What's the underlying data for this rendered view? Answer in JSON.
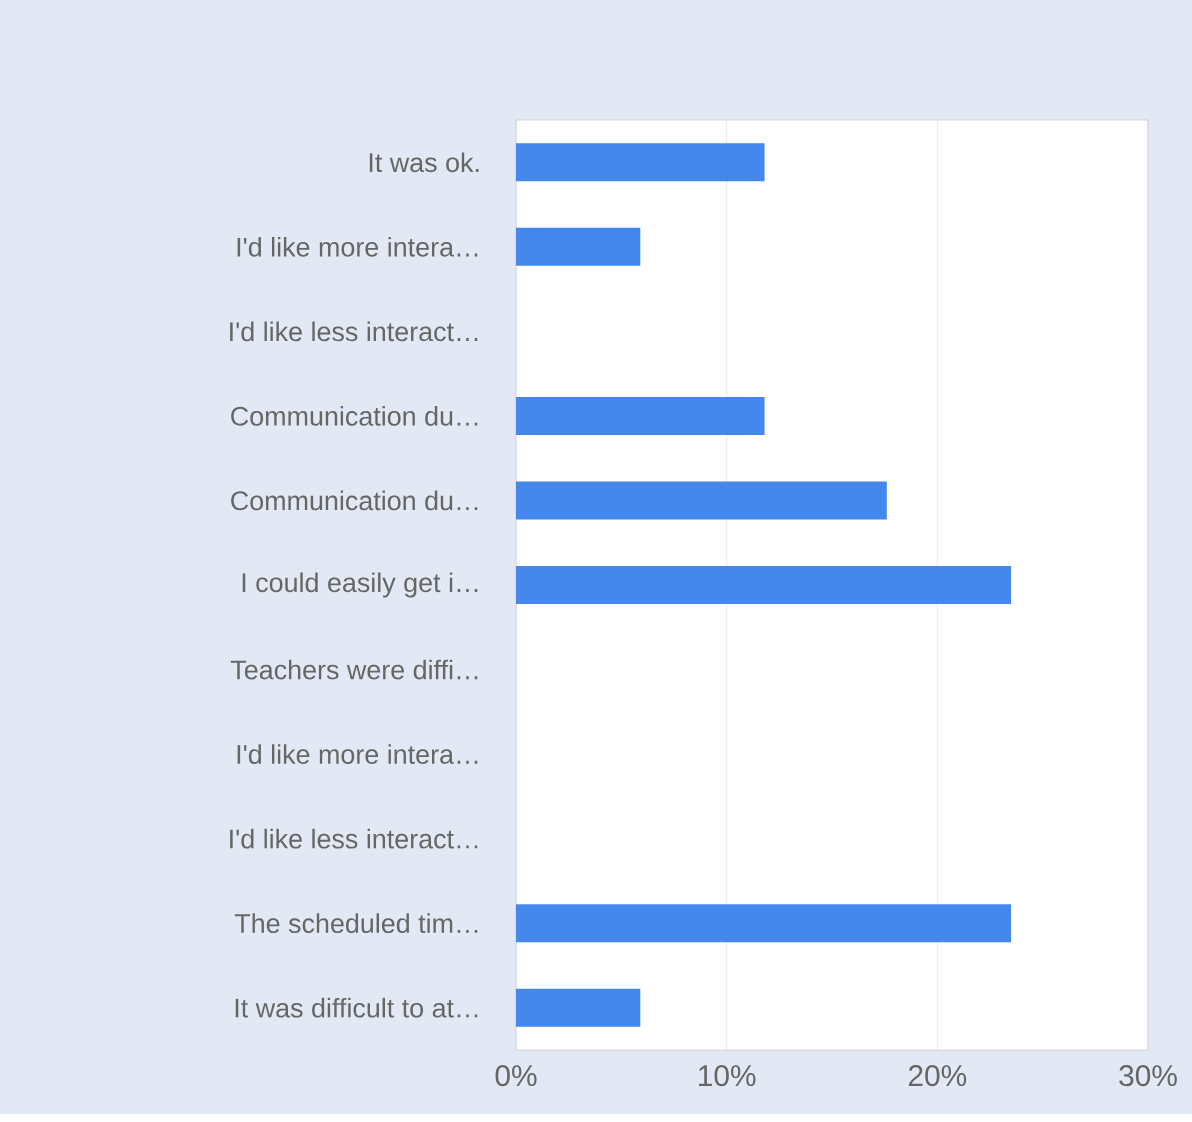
{
  "chart_data": {
    "type": "bar",
    "orientation": "horizontal",
    "categories": [
      "It was ok.",
      "I'd like more intera…",
      "I'd like less interact…",
      "Communication du…",
      "Communication du…",
      "I could easily get i…",
      "Teachers were diffi…",
      "I'd like more intera…",
      "I'd like less interact…",
      "The scheduled tim…",
      "It was difficult to at…"
    ],
    "values": [
      11.8,
      5.9,
      0,
      11.8,
      17.6,
      23.5,
      0,
      0,
      0,
      23.5,
      5.9
    ],
    "color": "#4488ee",
    "xlim": [
      0,
      30
    ],
    "xticks": [
      {
        "value": 0,
        "label": "0%"
      },
      {
        "value": 10,
        "label": "10%"
      },
      {
        "value": 20,
        "label": "20%"
      },
      {
        "value": 30,
        "label": "30%"
      }
    ],
    "grid": "x"
  }
}
